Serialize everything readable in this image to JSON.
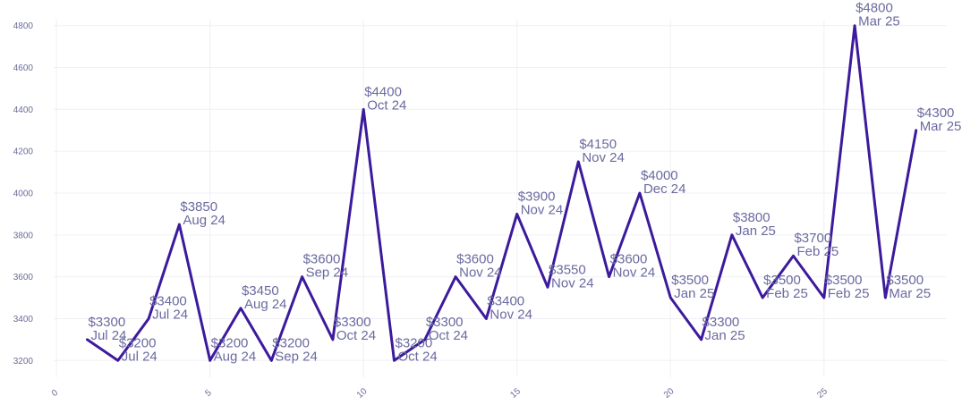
{
  "colors": {
    "line": "#3c1a9c",
    "label": "#6a6aa0",
    "grid": "#f0f0f5"
  },
  "chart_data": {
    "type": "line",
    "title": "",
    "xlabel": "",
    "ylabel": "",
    "xlim": [
      -0.5,
      29
    ],
    "ylim": [
      3120,
      4880
    ],
    "x_ticks": [
      0,
      5,
      10,
      15,
      20,
      25
    ],
    "x_tick_labels": [
      "0",
      "5",
      "10",
      "15",
      "20",
      "25"
    ],
    "y_ticks": [
      3200,
      3400,
      3600,
      3800,
      4000,
      4200,
      4400,
      4600,
      4800
    ],
    "y_tick_labels": [
      "3200",
      "3400",
      "3600",
      "3800",
      "4000",
      "4200",
      "4400",
      "4600",
      "4800"
    ],
    "grid": true,
    "legend": "none",
    "series": [
      {
        "x": [
          1,
          2,
          3,
          4,
          5,
          6,
          7,
          8,
          9,
          10,
          11,
          12,
          13,
          14,
          15,
          16,
          17,
          18,
          19,
          20,
          21,
          22,
          23,
          24,
          25,
          26,
          27,
          28
        ],
        "values": [
          3300,
          3200,
          3400,
          3850,
          3200,
          3450,
          3200,
          3600,
          3300,
          4400,
          3200,
          3300,
          3600,
          3400,
          3900,
          3550,
          4150,
          3600,
          4000,
          3500,
          3300,
          3800,
          3500,
          3700,
          3500,
          4800,
          3500,
          4300
        ],
        "price_labels": [
          "$3300",
          "$3200",
          "$3400",
          "$3850",
          "$3200",
          "$3450",
          "$3200",
          "$3600",
          "$3300",
          "$4400",
          "$3200",
          "$3300",
          "$3600",
          "$3400",
          "$3900",
          "$3550",
          "$4150",
          "$3600",
          "$4000",
          "$3500",
          "$3300",
          "$3800",
          "$3500",
          "$3700",
          "$3500",
          "$4800",
          "$3500",
          "$4300"
        ],
        "date_labels": [
          "Jul 24",
          "Jul 24",
          "Jul 24",
          "Aug 24",
          "Aug 24",
          "Aug 24",
          "Sep 24",
          "Sep 24",
          "Oct 24",
          "Oct 24",
          "Oct 24",
          "Oct 24",
          "Nov 24",
          "Nov 24",
          "Nov 24",
          "Nov 24",
          "Nov 24",
          "Nov 24",
          "Dec 24",
          "Jan 25",
          "Jan 25",
          "Jan 25",
          "Feb 25",
          "Feb 25",
          "Feb 25",
          "Mar 25",
          "Mar 25",
          "Mar 25"
        ]
      }
    ]
  }
}
